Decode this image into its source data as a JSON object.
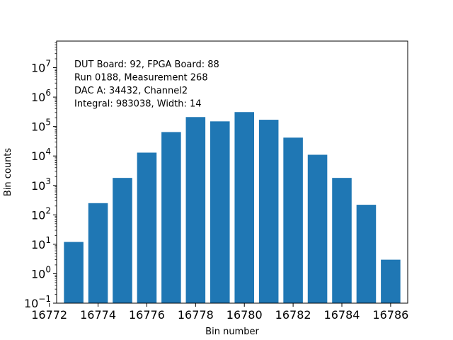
{
  "chart_data": {
    "type": "bar",
    "title": "",
    "xlabel": "Bin number",
    "ylabel": "Bin counts",
    "yscale": "log",
    "ylim": [
      0.1,
      80000000
    ],
    "xlim": [
      16772.3,
      16786.7
    ],
    "grid": false,
    "bar_color": "#1f77b4",
    "x": [
      16773,
      16774,
      16775,
      16776,
      16777,
      16778,
      16779,
      16780,
      16781,
      16782,
      16783,
      16784,
      16785,
      16786
    ],
    "values": [
      12,
      250,
      1800,
      13000,
      65000,
      210000,
      150000,
      310000,
      170000,
      42000,
      11000,
      1800,
      220,
      3
    ],
    "x_ticks": [
      16772,
      16774,
      16776,
      16778,
      16780,
      16782,
      16784,
      16786
    ],
    "y_ticks": [
      {
        "value": 0.1,
        "base": "10",
        "exp": "−1"
      },
      {
        "value": 1,
        "base": "10",
        "exp": "0"
      },
      {
        "value": 10,
        "base": "10",
        "exp": "1"
      },
      {
        "value": 100,
        "base": "10",
        "exp": "2"
      },
      {
        "value": 1000,
        "base": "10",
        "exp": "3"
      },
      {
        "value": 10000,
        "base": "10",
        "exp": "4"
      },
      {
        "value": 100000,
        "base": "10",
        "exp": "5"
      },
      {
        "value": 1000000,
        "base": "10",
        "exp": "6"
      },
      {
        "value": 10000000,
        "base": "10",
        "exp": "7"
      }
    ],
    "annotations": [
      "DUT Board: 92, FPGA Board: 88",
      "Run 0188, Measurement 268",
      "DAC A: 34432, Channel2",
      "Integral: 983038, Width: 14"
    ]
  }
}
